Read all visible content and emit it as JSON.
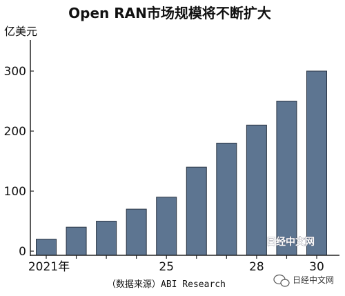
{
  "chart_data": {
    "type": "bar",
    "title": "Open RAN市场规模将不断扩大",
    "ylabel": "亿美元",
    "categories": [
      "2021年",
      "",
      "",
      "",
      "25",
      "",
      "",
      "28",
      "",
      "30"
    ],
    "values": [
      20,
      40,
      50,
      70,
      90,
      140,
      180,
      210,
      250,
      300
    ],
    "ylim": [
      0,
      330
    ],
    "yticks": [
      0,
      100,
      200,
      300
    ],
    "source": "（数据来源）ABI Research",
    "grid": false,
    "bar_color": "#5d7591"
  },
  "watermark": {
    "main": "日经中文网",
    "secondary": "日经中文网"
  }
}
